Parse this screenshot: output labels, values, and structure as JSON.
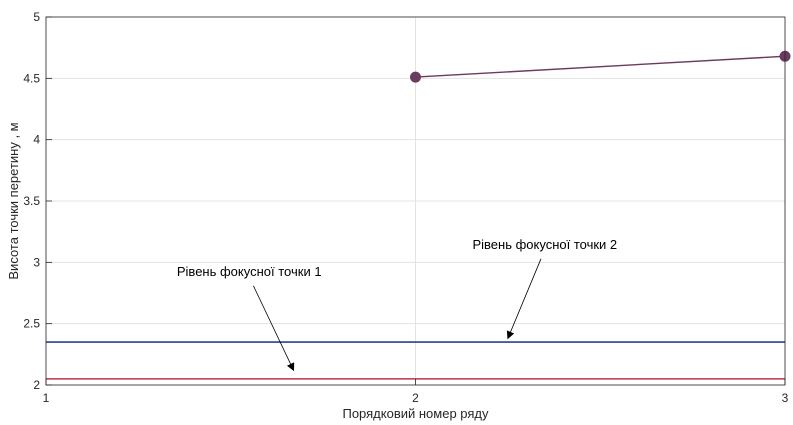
{
  "chart_data": {
    "type": "line",
    "xlabel": "Порядковий номер ряду",
    "ylabel": "Висота точки перетину , м",
    "xlim": [
      1,
      3
    ],
    "ylim": [
      2,
      5
    ],
    "xticks": [
      "1",
      "2",
      "3"
    ],
    "yticks": [
      "2",
      "2.5",
      "3",
      "3.5",
      "4",
      "4.5",
      "5"
    ],
    "grid": true,
    "series": [
      {
        "x": [
          2,
          3
        ],
        "y": [
          4.51,
          4.68
        ],
        "color": "#6b3a5f",
        "marker": "circle"
      }
    ],
    "reference_lines": [
      {
        "y": 2.35,
        "color": "#2e3f8f"
      },
      {
        "y": 2.05,
        "color": "#c0314a"
      }
    ],
    "annotations": [
      {
        "text": "Рівень фокусної точки 1",
        "text_at": [
          1.55,
          2.89
        ],
        "arrow_to": [
          1.67,
          2.12
        ]
      },
      {
        "text": "Рівень фокусної точки 2",
        "text_at": [
          2.35,
          3.11
        ],
        "arrow_to": [
          2.25,
          2.38
        ]
      }
    ]
  }
}
